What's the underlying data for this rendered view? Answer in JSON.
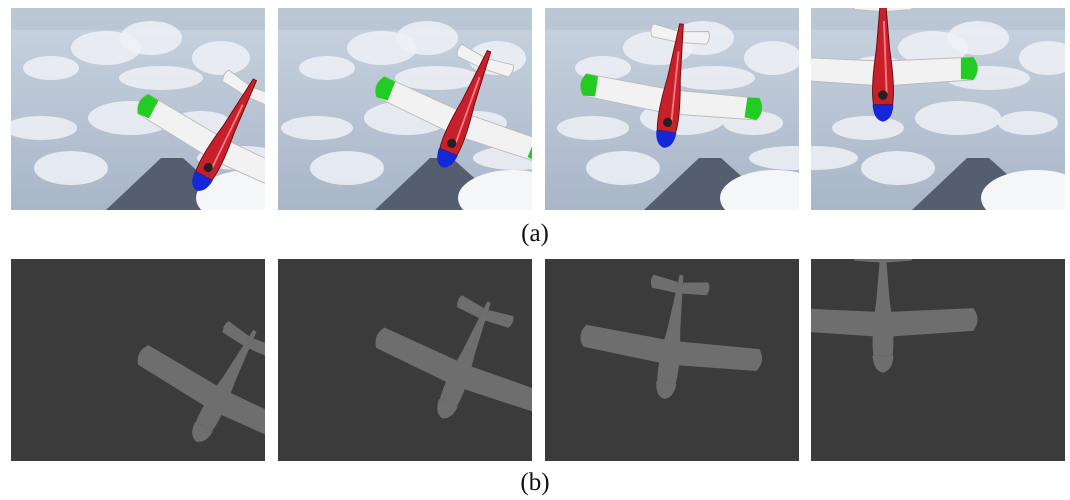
{
  "captions": {
    "a": "(a)",
    "b": "(b)"
  },
  "colors": {
    "sky_top": "#c9d3e0",
    "cloud": "#eef1f6",
    "mountain": "#555e6e",
    "depth_bg": "#3b3b3b",
    "depth_plane": "#6e6e6e",
    "fuselage": "#c8202a",
    "nose": "#1428d8",
    "wing": "#f2f2f2",
    "wingtip": "#22cc22"
  },
  "row_a": {
    "frames": [
      {
        "name": "frame-a1"
      },
      {
        "name": "frame-a2"
      },
      {
        "name": "frame-a3"
      },
      {
        "name": "frame-a4"
      }
    ]
  },
  "row_b": {
    "frames": [
      {
        "name": "frame-b1"
      },
      {
        "name": "frame-b2"
      },
      {
        "name": "frame-b3"
      },
      {
        "name": "frame-b4"
      }
    ]
  }
}
